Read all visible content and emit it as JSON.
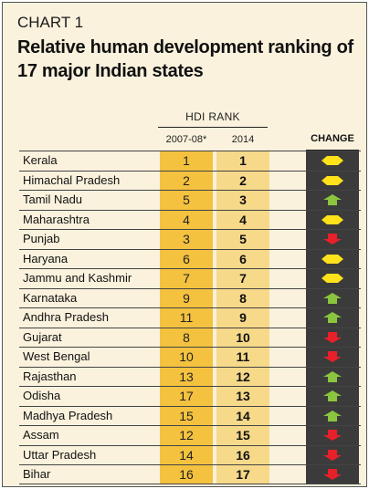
{
  "header": {
    "chart_label": "CHART 1",
    "title": "Relative human development ranking of 17 major Indian states"
  },
  "columns": {
    "group": "HDI RANK",
    "col1": "2007-08*",
    "col2": "2014",
    "change": "CHANGE"
  },
  "colors": {
    "same": "#ffe21a",
    "improved": "#8bc53f",
    "declined": "#e8202a",
    "col1_bg": "#f4c23f",
    "col2_bg": "#f7d98a",
    "change_bg": "#3b3b3b"
  },
  "chart_data": {
    "type": "table",
    "title": "Relative human development ranking of 17 major Indian states",
    "columns": [
      "2007-08*",
      "2014",
      "CHANGE"
    ],
    "rows": [
      {
        "state": "Kerala",
        "rank_2007": "1",
        "rank_2014": "1",
        "change": "same"
      },
      {
        "state": "Himachal Pradesh",
        "rank_2007": "2",
        "rank_2014": "2",
        "change": "same"
      },
      {
        "state": "Tamil Nadu",
        "rank_2007": "5",
        "rank_2014": "3",
        "change": "up"
      },
      {
        "state": "Maharashtra",
        "rank_2007": "4",
        "rank_2014": "4",
        "change": "same"
      },
      {
        "state": "Punjab",
        "rank_2007": "3",
        "rank_2014": "5",
        "change": "down"
      },
      {
        "state": "Haryana",
        "rank_2007": "6",
        "rank_2014": "6",
        "change": "same"
      },
      {
        "state": "Jammu and Kashmir",
        "rank_2007": "7",
        "rank_2014": "7",
        "change": "same"
      },
      {
        "state": "Karnataka",
        "rank_2007": "9",
        "rank_2014": "8",
        "change": "up"
      },
      {
        "state": "Andhra Pradesh",
        "rank_2007": "11",
        "rank_2014": "9",
        "change": "up"
      },
      {
        "state": "Gujarat",
        "rank_2007": "8",
        "rank_2014": "10",
        "change": "down"
      },
      {
        "state": "West Bengal",
        "rank_2007": "10",
        "rank_2014": "11",
        "change": "down"
      },
      {
        "state": "Rajasthan",
        "rank_2007": "13",
        "rank_2014": "12",
        "change": "up"
      },
      {
        "state": "Odisha",
        "rank_2007": "17",
        "rank_2014": "13",
        "change": "up"
      },
      {
        "state": "Madhya Pradesh",
        "rank_2007": "15",
        "rank_2014": "14",
        "change": "up"
      },
      {
        "state": "Assam",
        "rank_2007": "12",
        "rank_2014": "15",
        "change": "down"
      },
      {
        "state": "Uttar Pradesh",
        "rank_2007": "14",
        "rank_2014": "16",
        "change": "down"
      },
      {
        "state": "Bihar",
        "rank_2007": "16",
        "rank_2014": "17",
        "change": "down"
      }
    ]
  }
}
